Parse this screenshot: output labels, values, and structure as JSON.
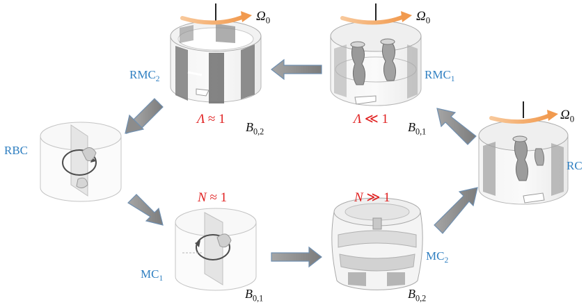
{
  "colors": {
    "label_blue": "#2f7fc1",
    "condition_red": "#e02020",
    "arrow_fill": "#8c8c8c",
    "arrow_stroke": "#6f8fb0",
    "rotation_arrow": "#f3ac6a"
  },
  "nodes": {
    "rmc2": {
      "base": "RMC",
      "sub": "2"
    },
    "rmc1": {
      "base": "RMC",
      "sub": "1"
    },
    "rbc": {
      "base": "RBC"
    },
    "rc": {
      "base": "RC"
    },
    "mc1": {
      "base": "MC",
      "sub": "1"
    },
    "mc2": {
      "base": "MC",
      "sub": "2"
    }
  },
  "rotation": {
    "base": "Ω",
    "sub": "0"
  },
  "conditions": {
    "lambda_approx": {
      "sym": "Λ",
      "op": "≈",
      "val": "1"
    },
    "lambda_ll": {
      "sym": "Λ",
      "op": "≪",
      "val": "1"
    },
    "n_approx": {
      "sym": "N",
      "op": "≈",
      "val": "1"
    },
    "n_gg": {
      "sym": "N",
      "op": "≫",
      "val": "1"
    }
  },
  "fields": {
    "b02_top": {
      "base": "B",
      "sub": "0,2"
    },
    "b01_top": {
      "base": "B",
      "sub": "0,1"
    },
    "b01_bottom": {
      "base": "B",
      "sub": "0,1"
    },
    "b02_bottom": {
      "base": "B",
      "sub": "0,2"
    }
  },
  "icons": {
    "rotation_arrow": "curved-orange-arrow",
    "transition_arrow": "gray-block-arrow",
    "cylinder": "cylinder-shell-render"
  }
}
